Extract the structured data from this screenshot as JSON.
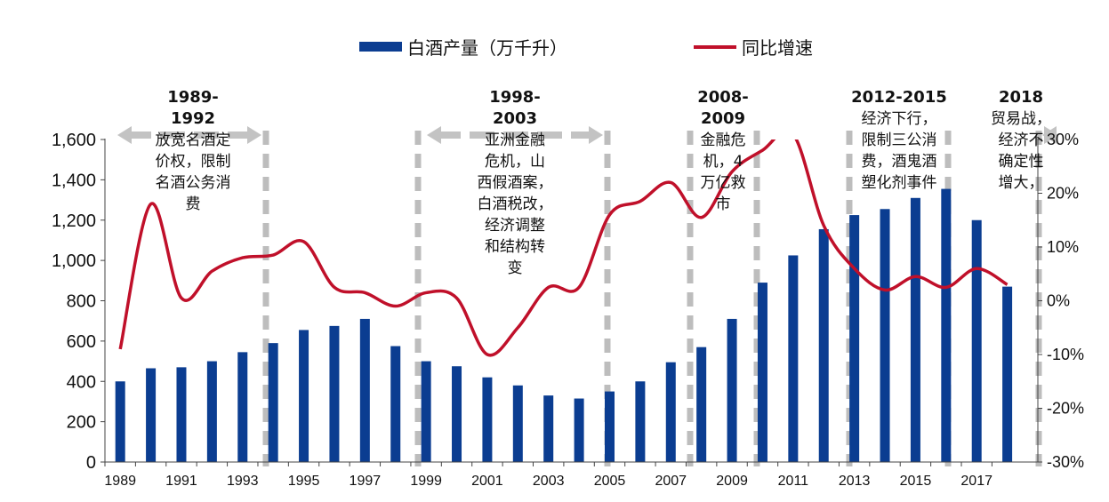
{
  "legend": {
    "bar_label": "白酒产量（万千升）",
    "line_label": "同比增速"
  },
  "colors": {
    "bar": "#0b3d91",
    "line": "#c0102a",
    "period_arrow": "#c3c3c3",
    "divider": "#bdbdbd"
  },
  "annotations": [
    {
      "title": "1989-\n1992",
      "body": "放宽名酒定\n价权，限制\n名酒公务消\n费"
    },
    {
      "title": "1998-\n2003",
      "body": "亚洲金融\n危机，山\n西假酒案，\n白酒税改，\n经济调整\n和结构转\n变"
    },
    {
      "title": "2008-\n2009",
      "body": "金融危\n机，4\n万亿救\n市"
    },
    {
      "title": "2012-2015",
      "body": "经济下行，\n限制三公消\n费，酒鬼酒\n塑化剂事件"
    },
    {
      "title": "2018",
      "body": "贸易战，\n经济不\n确定性\n增大，"
    }
  ],
  "chart_data": {
    "type": "bar",
    "title": "",
    "x": [
      1989,
      1990,
      1991,
      1992,
      1993,
      1994,
      1995,
      1996,
      1997,
      1998,
      1999,
      2000,
      2001,
      2002,
      2003,
      2004,
      2005,
      2006,
      2007,
      2008,
      2009,
      2010,
      2011,
      2012,
      2013,
      2014,
      2015,
      2016,
      2017,
      2018
    ],
    "x_tick_labels": [
      "1989",
      "1991",
      "1993",
      "1995",
      "1997",
      "1999",
      "2001",
      "2003",
      "2005",
      "2007",
      "2009",
      "2011",
      "2013",
      "2015",
      "2017"
    ],
    "series": [
      {
        "name": "白酒产量（万千升）",
        "type": "bar",
        "axis": "left",
        "values": [
          400,
          465,
          470,
          500,
          545,
          590,
          655,
          675,
          710,
          575,
          500,
          475,
          420,
          380,
          330,
          315,
          350,
          400,
          495,
          570,
          710,
          890,
          1025,
          1155,
          1225,
          1255,
          1310,
          1355,
          1200,
          870
        ]
      },
      {
        "name": "同比增速",
        "type": "line",
        "axis": "right",
        "unit": "%",
        "values": [
          -9,
          18,
          0.5,
          5.5,
          8,
          8.5,
          11,
          2.5,
          1.5,
          -1,
          1.5,
          0.5,
          -10,
          -5,
          2.5,
          2.5,
          16,
          18.5,
          22,
          15.5,
          24,
          28,
          31,
          14,
          6,
          2,
          4.5,
          2.5,
          6,
          3
        ]
      }
    ],
    "y_left": {
      "range": [
        0,
        1600
      ],
      "ticks": [
        "0",
        "200",
        "400",
        "600",
        "800",
        "1,000",
        "1,200",
        "1,400",
        "1,600"
      ],
      "tick_values": [
        0,
        200,
        400,
        600,
        800,
        1000,
        1200,
        1400,
        1600
      ]
    },
    "y_right": {
      "range": [
        -30,
        30
      ],
      "ticks": [
        "-30%",
        "-20%",
        "-10%",
        "0%",
        "10%",
        "20%",
        "30%"
      ],
      "tick_values": [
        -30,
        -20,
        -10,
        0,
        10,
        20,
        30
      ]
    },
    "periods": [
      [
        1989,
        1993
      ],
      [
        1998,
        2004
      ],
      [
        2008,
        2009
      ],
      [
        2012,
        2015
      ],
      [
        2018,
        2018
      ]
    ],
    "grid": false,
    "legend_position": "top"
  }
}
